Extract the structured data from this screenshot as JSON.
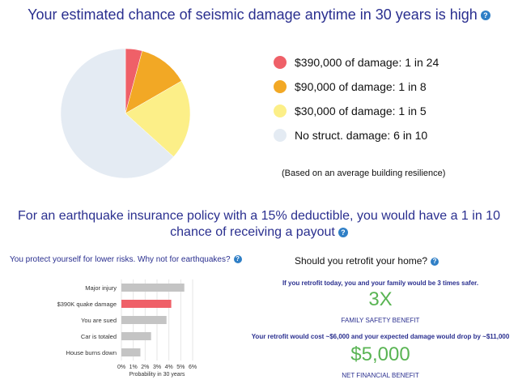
{
  "header": {
    "title": "Your estimated chance of seismic damage anytime in 30 years is high"
  },
  "legend": {
    "items": [
      {
        "label": "$390,000 of damage: 1 in 24",
        "color": "#ef6068"
      },
      {
        "label": "$90,000 of damage: 1 in 8",
        "color": "#f2a825"
      },
      {
        "label": "$30,000 of damage: 1 in 5",
        "color": "#fcef88"
      },
      {
        "label": "No struct. damage: 6 in 10",
        "color": "#e4ebf3"
      }
    ],
    "basis_note": "(Based on an average building resilience)"
  },
  "policy": {
    "text": "For an earthquake insurance policy with a 15% deductible, you would have a 1 in 10 chance of receiving a payout"
  },
  "protect": {
    "heading": "You protect yourself for lower risks. Why not for earthquakes?"
  },
  "retrofit": {
    "heading": "Should you retrofit your home?",
    "safer_text": "If you retrofit today, you and your family would be 3 times safer.",
    "safety_value": "3X",
    "safety_caption": "FAMILY SAFETY BENEFIT",
    "cost_text": "Your retrofit would cost ~$6,000 and your expected damage would drop by ~$11,000",
    "benefit_value": "$5,000",
    "benefit_caption": "NET FINANCIAL BENEFIT"
  },
  "chart_data": [
    {
      "type": "pie",
      "labels": [
        "$390,000 of damage: 1 in 24",
        "$90,000 of damage: 1 in 8",
        "$30,000 of damage: 1 in 5",
        "No struct. damage: 6 in 10"
      ],
      "values": [
        0.0417,
        0.125,
        0.2,
        0.6333
      ],
      "colors": [
        "#ef6068",
        "#f2a825",
        "#fcef88",
        "#e4ebf3"
      ],
      "start": "top, clockwise"
    },
    {
      "type": "bar",
      "orientation": "horizontal",
      "categories": [
        "Major injury",
        "$390K quake damage",
        "You are sued",
        "Car is totaled",
        "House burns down"
      ],
      "values": [
        5.3,
        4.2,
        3.8,
        2.5,
        1.6
      ],
      "colors": [
        "#c4c4c4",
        "#ef6068",
        "#c4c4c4",
        "#c4c4c4",
        "#c4c4c4"
      ],
      "xlabel": "Probability in 30 years",
      "xlim": [
        0,
        6
      ],
      "xticks": [
        "0%",
        "1%",
        "2%",
        "3%",
        "4%",
        "5%",
        "6%"
      ],
      "grid": true
    }
  ]
}
